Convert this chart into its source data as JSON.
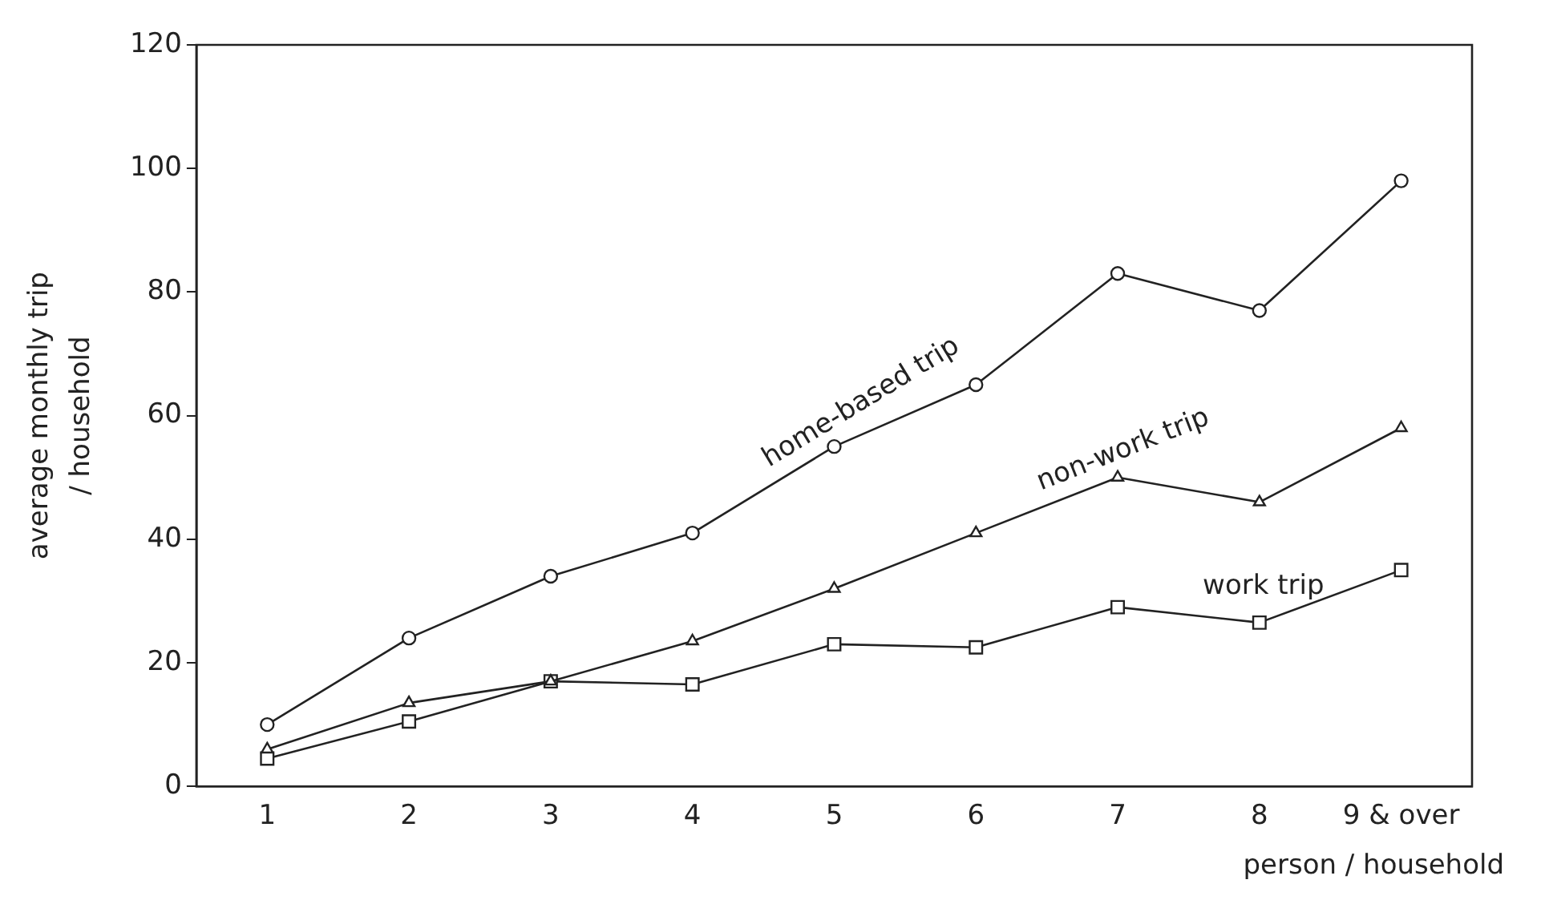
{
  "chart_data": {
    "type": "line",
    "xlabel": "person / household",
    "ylabel": "average monthly trip / household",
    "categories": [
      "1",
      "2",
      "3",
      "4",
      "5",
      "6",
      "7",
      "8",
      "9 & over"
    ],
    "series": [
      {
        "name": "home-based trip",
        "color": "#222222",
        "marker": "circle",
        "values": [
          10,
          24,
          34,
          41,
          55,
          65,
          83,
          77,
          98
        ]
      },
      {
        "name": "non-work trip",
        "color": "#222222",
        "marker": "triangle",
        "values": [
          6,
          13.5,
          17,
          23.5,
          32,
          41,
          50,
          46,
          58
        ]
      },
      {
        "name": "work trip",
        "color": "#222222",
        "marker": "square",
        "values": [
          4.5,
          10.5,
          17,
          16.5,
          23,
          22.5,
          29,
          26.5,
          35
        ]
      }
    ],
    "ylim": [
      0,
      120
    ],
    "yticks": [
      0,
      20,
      40,
      60,
      80,
      100,
      120
    ],
    "grid": false,
    "legend": false,
    "line_style": "solid"
  }
}
